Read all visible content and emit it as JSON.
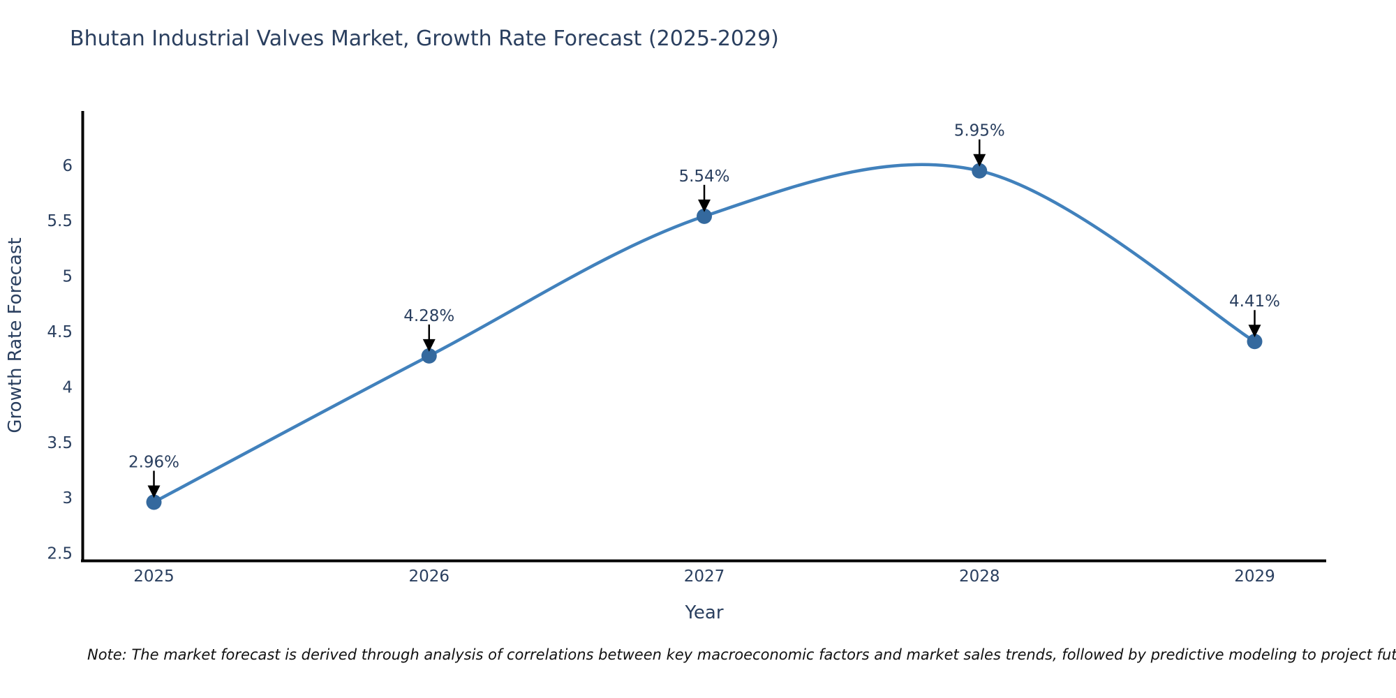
{
  "title": "Bhutan Industrial Valves Market, Growth Rate Forecast (2025-2029)",
  "note": "Note: The market forecast is derived through analysis of correlations between key macroeconomic factors and market sales trends, followed by predictive modeling to project future sales",
  "chart_data": {
    "type": "line",
    "line_shape": "spline",
    "x": [
      2025,
      2026,
      2027,
      2028,
      2029
    ],
    "values": [
      2.96,
      4.28,
      5.54,
      5.95,
      4.41
    ],
    "point_labels": [
      "2.96%",
      "4.28%",
      "5.54%",
      "5.95%",
      "4.41%"
    ],
    "title": "Bhutan Industrial Valves Market, Growth Rate Forecast (2025-2029)",
    "xlabel": "Year",
    "ylabel": "Growth Rate Forecast",
    "x_tick_labels": [
      "2025",
      "2026",
      "2027",
      "2028",
      "2029"
    ],
    "y_ticks": [
      2.5,
      3,
      3.5,
      4,
      4.5,
      5,
      5.5,
      6
    ],
    "xlim": [
      2024.74,
      2029.26
    ],
    "ylim": [
      2.44,
      6.49
    ],
    "grid": false,
    "legend": "none",
    "colors": {
      "line": "#4181bc",
      "marker": "#34699e",
      "axis_line": "#000000",
      "axis_text": "#2a3f5f",
      "annotation_text": "#2a3f5f",
      "annotation_arrow": "#000000",
      "title_text": "#2a3f5f",
      "note_text": "#111111",
      "background": "#ffffff"
    }
  }
}
